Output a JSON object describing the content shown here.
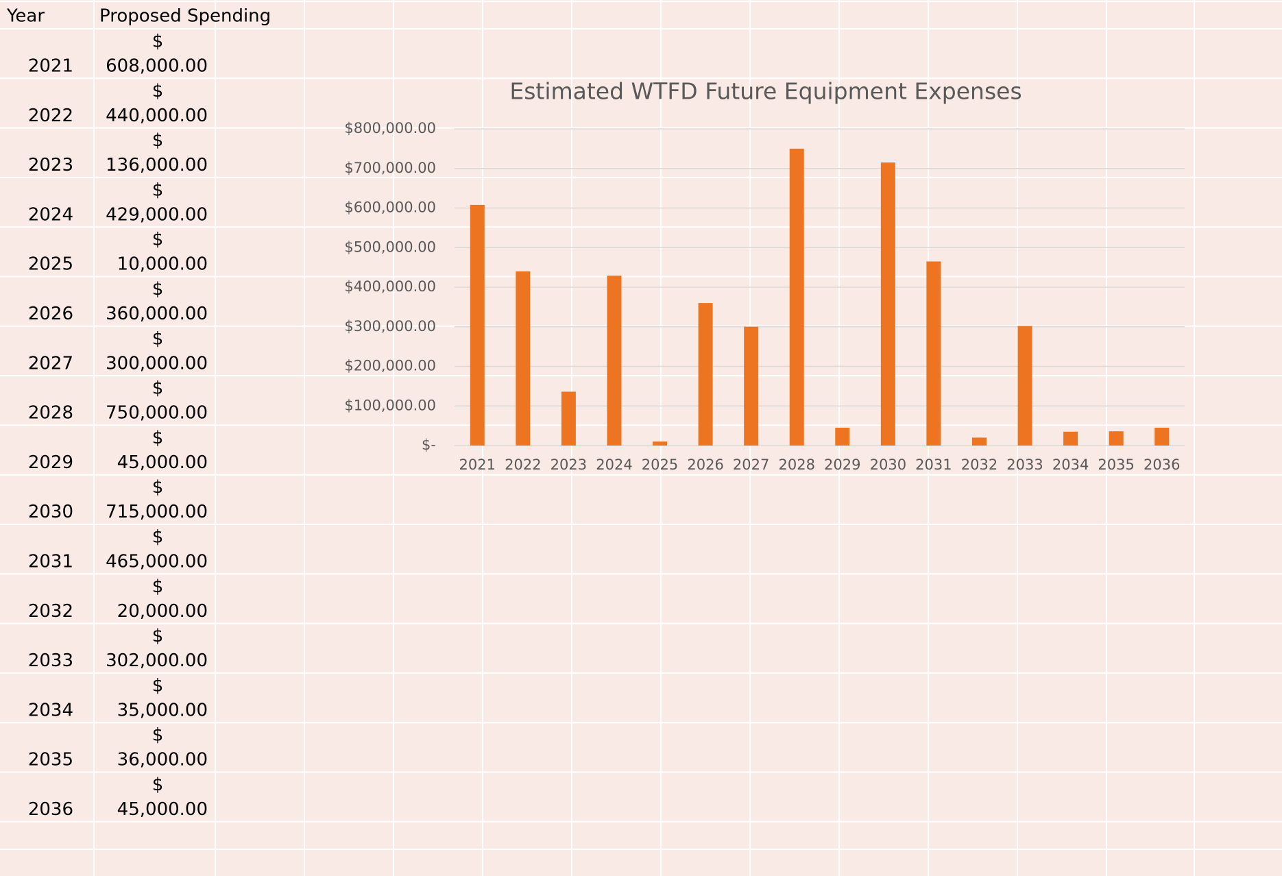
{
  "table": {
    "header": [
      "Year",
      "Proposed Spending"
    ],
    "rows": [
      {
        "year": "2021",
        "symbol": "$",
        "amount": "608,000.00"
      },
      {
        "year": "2022",
        "symbol": "$",
        "amount": "440,000.00"
      },
      {
        "year": "2023",
        "symbol": "$",
        "amount": "136,000.00"
      },
      {
        "year": "2024",
        "symbol": "$",
        "amount": "429,000.00"
      },
      {
        "year": "2025",
        "symbol": "$",
        "amount": "10,000.00"
      },
      {
        "year": "2026",
        "symbol": "$",
        "amount": "360,000.00"
      },
      {
        "year": "2027",
        "symbol": "$",
        "amount": "300,000.00"
      },
      {
        "year": "2028",
        "symbol": "$",
        "amount": "750,000.00"
      },
      {
        "year": "2029",
        "symbol": "$",
        "amount": "45,000.00"
      },
      {
        "year": "2030",
        "symbol": "$",
        "amount": "715,000.00"
      },
      {
        "year": "2031",
        "symbol": "$",
        "amount": "465,000.00"
      },
      {
        "year": "2032",
        "symbol": "$",
        "amount": "20,000.00"
      },
      {
        "year": "2033",
        "symbol": "$",
        "amount": "302,000.00"
      },
      {
        "year": "2034",
        "symbol": "$",
        "amount": "35,000.00"
      },
      {
        "year": "2035",
        "symbol": "$",
        "amount": "36,000.00"
      },
      {
        "year": "2036",
        "symbol": "$",
        "amount": "45,000.00"
      }
    ]
  },
  "chart_data": {
    "type": "bar",
    "title": "Estimated WTFD Future Equipment Expenses",
    "categories": [
      "2021",
      "2022",
      "2023",
      "2024",
      "2025",
      "2026",
      "2027",
      "2028",
      "2029",
      "2030",
      "2031",
      "2032",
      "2033",
      "2034",
      "2035",
      "2036"
    ],
    "values": [
      608000,
      440000,
      136000,
      429000,
      10000,
      360000,
      300000,
      750000,
      45000,
      715000,
      465000,
      20000,
      302000,
      35000,
      36000,
      45000
    ],
    "color": "#ed7420",
    "ylim": [
      0,
      800000
    ],
    "yticks": [
      {
        "value": 0,
        "label": "$-"
      },
      {
        "value": 100000,
        "label": "$100,000.00"
      },
      {
        "value": 200000,
        "label": "$200,000.00"
      },
      {
        "value": 300000,
        "label": "$300,000.00"
      },
      {
        "value": 400000,
        "label": "$400,000.00"
      },
      {
        "value": 500000,
        "label": "$500,000.00"
      },
      {
        "value": 600000,
        "label": "$600,000.00"
      },
      {
        "value": 700000,
        "label": "$700,000.00"
      },
      {
        "value": 800000,
        "label": "$800,000.00"
      }
    ],
    "grid": true
  }
}
